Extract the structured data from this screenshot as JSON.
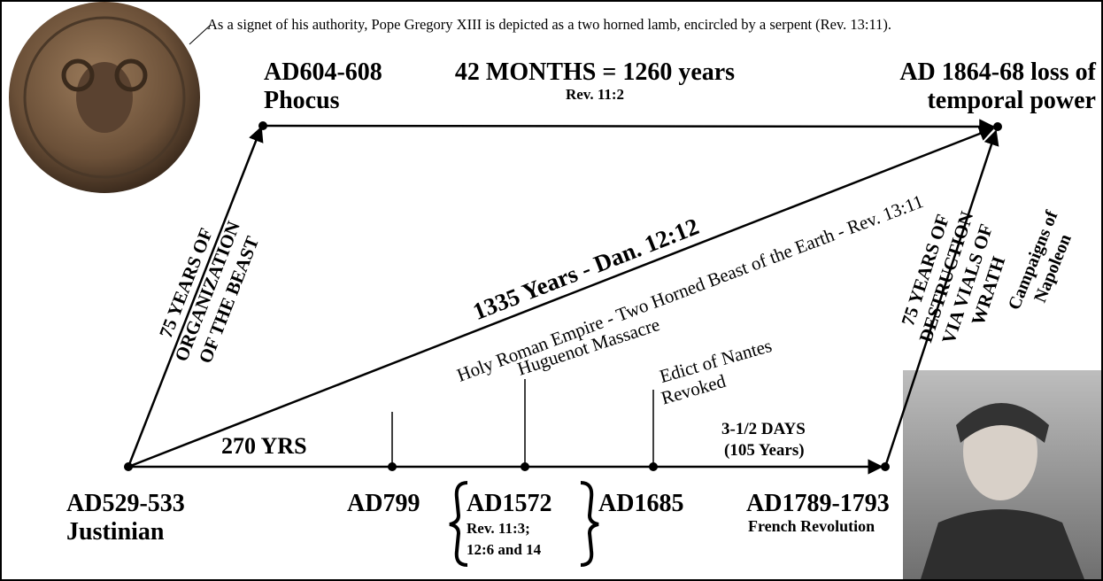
{
  "caption": "As a signet of his authority, Pope Gregory XIII is depicted as a two horned lamb, encircled by a serpent (Rev. 13:11).",
  "top": {
    "phocus": [
      "AD604-608",
      "Phocus"
    ],
    "months": [
      "42 MONTHS = 1260 years",
      "Rev. 11:2"
    ],
    "loss": [
      "AD 1864-68 loss of",
      "temporal power"
    ]
  },
  "sides": {
    "organization": [
      "75 YEARS OF",
      "ORGANIZATION",
      "OF THE BEAST"
    ],
    "destruction": [
      "75 YEARS OF",
      "DESTRUCTION",
      "VIA VIALS OF",
      "WRATH"
    ],
    "napoleon": [
      "Campaigns of",
      "Napoleon"
    ]
  },
  "diagonal": {
    "years": "1335 Years - Dan. 12:12",
    "empire": "Holy Roman Empire - Two Horned Beast of the Earth - Rev. 13:11",
    "huguenot": "Huguenot Massacre",
    "edict": [
      "Edict of Nantes",
      "Revoked"
    ]
  },
  "bottom": {
    "span": "270 YRS",
    "days": [
      "3-1/2 DAYS",
      "(105 Years)"
    ],
    "justinian": [
      "AD529-533",
      "Justinian"
    ],
    "ad799": "AD799",
    "ad1572": [
      "AD1572",
      "Rev. 11:3;",
      "12:6 and 14"
    ],
    "ad1685": "AD1685",
    "revolution": [
      "AD1789-1793",
      "French Revolution"
    ]
  }
}
